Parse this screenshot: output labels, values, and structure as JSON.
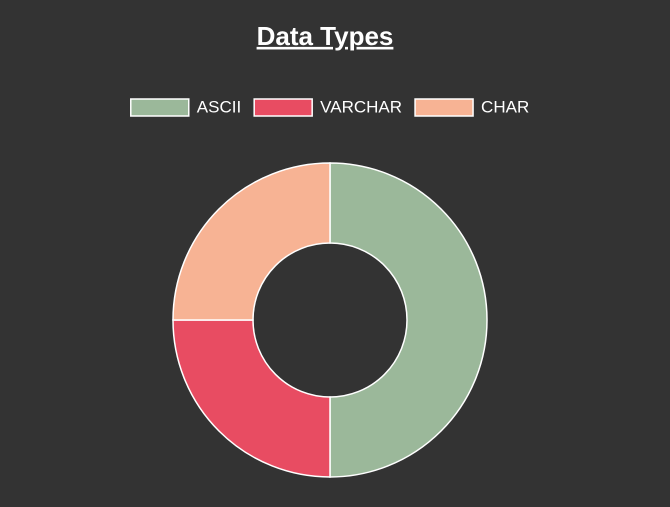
{
  "chart_data": {
    "type": "doughnut",
    "title": "Data Types",
    "categories": [
      "ASCII",
      "VARCHAR",
      "CHAR"
    ],
    "values": [
      50,
      25,
      25
    ],
    "colors": [
      "#9bb89a",
      "#e84c62",
      "#f7b394"
    ],
    "legend": "top"
  }
}
